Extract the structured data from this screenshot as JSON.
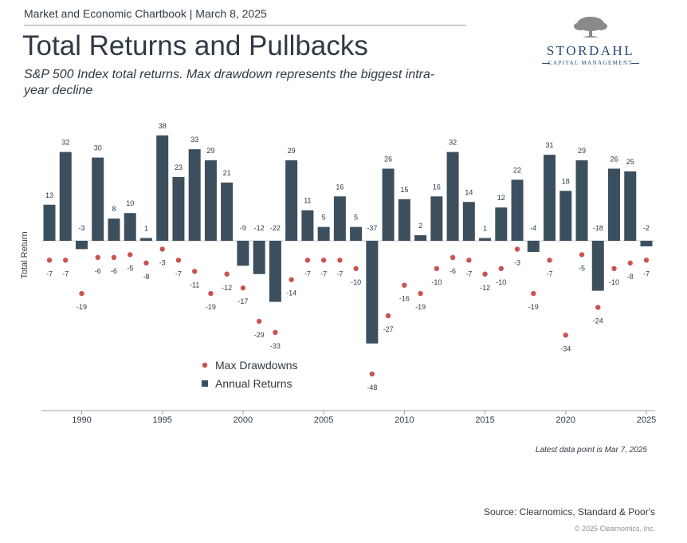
{
  "header": {
    "chartbook": "Market and Economic Chartbook | March 8, 2025",
    "title": "Total Returns and Pullbacks",
    "subtitle": "S&P 500 Index total returns. Max drawdown represents the biggest intra-year decline"
  },
  "logo": {
    "name": "STORDAHL",
    "tagline": "CAPITAL MANAGEMENT",
    "icon": "tree-icon"
  },
  "colors": {
    "bar": "#3c4f5e",
    "dot": "#c9544f",
    "text": "#2f3a44",
    "brand": "#2a4a7a"
  },
  "chart_data": {
    "type": "bar",
    "ylabel": "Total Return",
    "x": [
      1988,
      1989,
      1990,
      1991,
      1992,
      1993,
      1994,
      1995,
      1996,
      1997,
      1998,
      1999,
      2000,
      2001,
      2002,
      2003,
      2004,
      2005,
      2006,
      2007,
      2008,
      2009,
      2010,
      2011,
      2012,
      2013,
      2014,
      2015,
      2016,
      2017,
      2018,
      2019,
      2020,
      2021,
      2022,
      2023,
      2024,
      2025
    ],
    "x_ticks": [
      1990,
      1995,
      2000,
      2005,
      2010,
      2015,
      2020,
      2025
    ],
    "series": [
      {
        "name": "Annual Returns",
        "mark": "bar",
        "values": [
          13,
          32,
          -3,
          30,
          8,
          10,
          1,
          38,
          23,
          33,
          29,
          21,
          -9,
          -12,
          -22,
          29,
          11,
          5,
          16,
          5,
          -37,
          26,
          15,
          2,
          16,
          32,
          14,
          1,
          12,
          22,
          -4,
          31,
          18,
          29,
          -18,
          26,
          25,
          -2
        ]
      },
      {
        "name": "Max Drawdowns",
        "mark": "dot",
        "values": [
          -7,
          -7,
          -19,
          -6,
          -6,
          -5,
          -8,
          -3,
          -7,
          -11,
          -19,
          -12,
          -17,
          -29,
          -33,
          -14,
          -7,
          -7,
          -7,
          -10,
          -48,
          -27,
          -16,
          -19,
          -10,
          -6,
          -7,
          -12,
          -10,
          -3,
          -19,
          -7,
          -34,
          -5,
          -24,
          -10,
          -8,
          -7
        ]
      }
    ],
    "legend": [
      "Max Drawdowns",
      "Annual Returns"
    ],
    "legend_position": "bottom-center",
    "ylim": [
      -50,
      40
    ],
    "grid": false
  },
  "footer": {
    "note": "Latest data point is Mar 7, 2025",
    "source": "Source: Clearnomics, Standard & Poor's",
    "copyright": "© 2025 Clearnomics, Inc."
  }
}
